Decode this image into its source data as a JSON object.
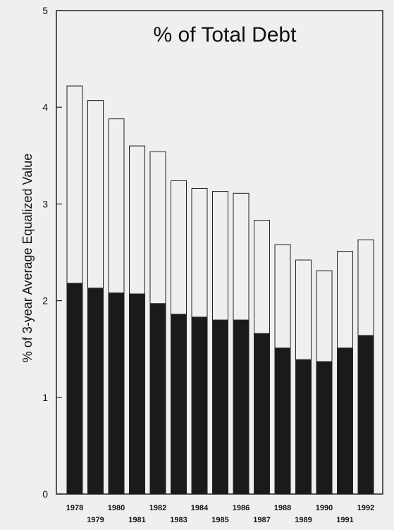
{
  "chart_data": {
    "type": "bar",
    "title": "% of Total Debt",
    "xlabel": "",
    "ylabel": "% of 3-year Average Equalized Value",
    "ylim": [
      0,
      5
    ],
    "yticks": [
      "0",
      "1",
      "2",
      "3",
      "4",
      "5"
    ],
    "grid": false,
    "legend": "none",
    "stacked": true,
    "categories": [
      "1978",
      "1979",
      "1980",
      "1981",
      "1982",
      "1983",
      "1984",
      "1985",
      "1986",
      "1987",
      "1988",
      "1989",
      "1990",
      "1991",
      "1992"
    ],
    "series": [
      {
        "color": "#1a1a1a",
        "values": [
          2.18,
          2.13,
          2.08,
          2.07,
          1.97,
          1.86,
          1.83,
          1.8,
          1.8,
          1.66,
          1.51,
          1.39,
          1.37,
          1.51,
          1.64
        ]
      },
      {
        "color": "#efefef",
        "values": [
          2.04,
          1.94,
          1.8,
          1.53,
          1.57,
          1.38,
          1.33,
          1.33,
          1.31,
          1.17,
          1.07,
          1.03,
          0.94,
          1.0,
          0.99
        ]
      }
    ],
    "totals": [
      4.22,
      4.07,
      3.88,
      3.6,
      3.54,
      3.24,
      3.16,
      3.13,
      3.11,
      2.83,
      2.58,
      2.42,
      2.31,
      2.51,
      2.63
    ]
  }
}
